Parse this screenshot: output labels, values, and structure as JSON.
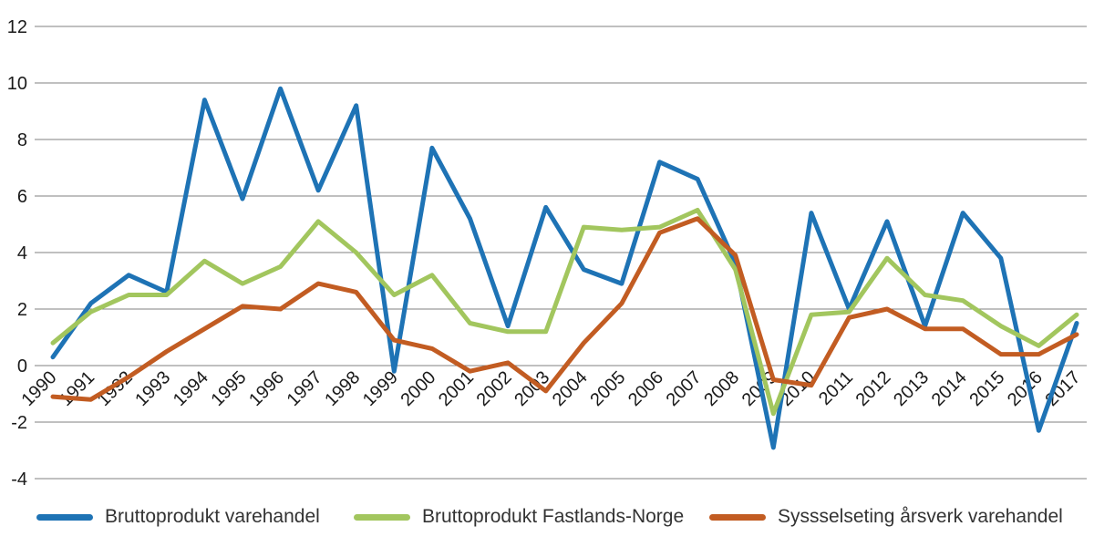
{
  "chart_data": {
    "type": "line",
    "title": "",
    "xlabel": "",
    "ylabel": "",
    "x": [
      1990,
      1991,
      1992,
      1993,
      1994,
      1995,
      1996,
      1997,
      1998,
      1999,
      2000,
      2001,
      2002,
      2003,
      2004,
      2005,
      2006,
      2007,
      2008,
      2009,
      2010,
      2011,
      2012,
      2013,
      2014,
      2015,
      2016,
      2017
    ],
    "series": [
      {
        "name": "Bruttoprodukt varehandel",
        "color": "#1E73B5",
        "values": [
          0.3,
          2.2,
          3.2,
          2.6,
          9.4,
          5.9,
          9.8,
          6.2,
          9.2,
          -0.2,
          7.7,
          5.2,
          1.4,
          5.6,
          3.4,
          2.9,
          7.2,
          6.6,
          3.6,
          -2.9,
          5.4,
          2.0,
          5.1,
          1.4,
          5.4,
          3.8,
          -2.3,
          1.5
        ]
      },
      {
        "name": "Bruttoprodukt Fastlands-Norge",
        "color": "#A2C65E",
        "values": [
          0.8,
          1.9,
          2.5,
          2.5,
          3.7,
          2.9,
          3.5,
          5.1,
          4.0,
          2.5,
          3.2,
          1.5,
          1.2,
          1.2,
          4.9,
          4.8,
          4.9,
          5.5,
          3.4,
          -1.7,
          1.8,
          1.9,
          3.8,
          2.5,
          2.3,
          1.4,
          0.7,
          1.8
        ]
      },
      {
        "name": "Syssselseting årsverk varehandel",
        "color": "#C25C22",
        "values": [
          -1.1,
          -1.2,
          -0.4,
          0.5,
          1.3,
          2.1,
          2.0,
          2.9,
          2.6,
          0.9,
          0.6,
          -0.2,
          0.1,
          -0.9,
          0.8,
          2.2,
          4.7,
          5.2,
          3.9,
          -0.5,
          -0.7,
          1.7,
          2.0,
          1.3,
          1.3,
          0.4,
          0.4,
          1.1
        ]
      }
    ],
    "y_axis": {
      "min": -4,
      "max": 12,
      "step": 2,
      "ticks": [
        12,
        10,
        8,
        6,
        4,
        2,
        0,
        -2,
        -4
      ]
    },
    "x_tick_rotation": -45,
    "grid": true,
    "legend_position": "bottom"
  },
  "style": {
    "gridline_color": "#808080",
    "axis_text_color": "#1a1a1a",
    "legend_text_color": "#333333",
    "background": "#ffffff",
    "line_width": 5
  }
}
